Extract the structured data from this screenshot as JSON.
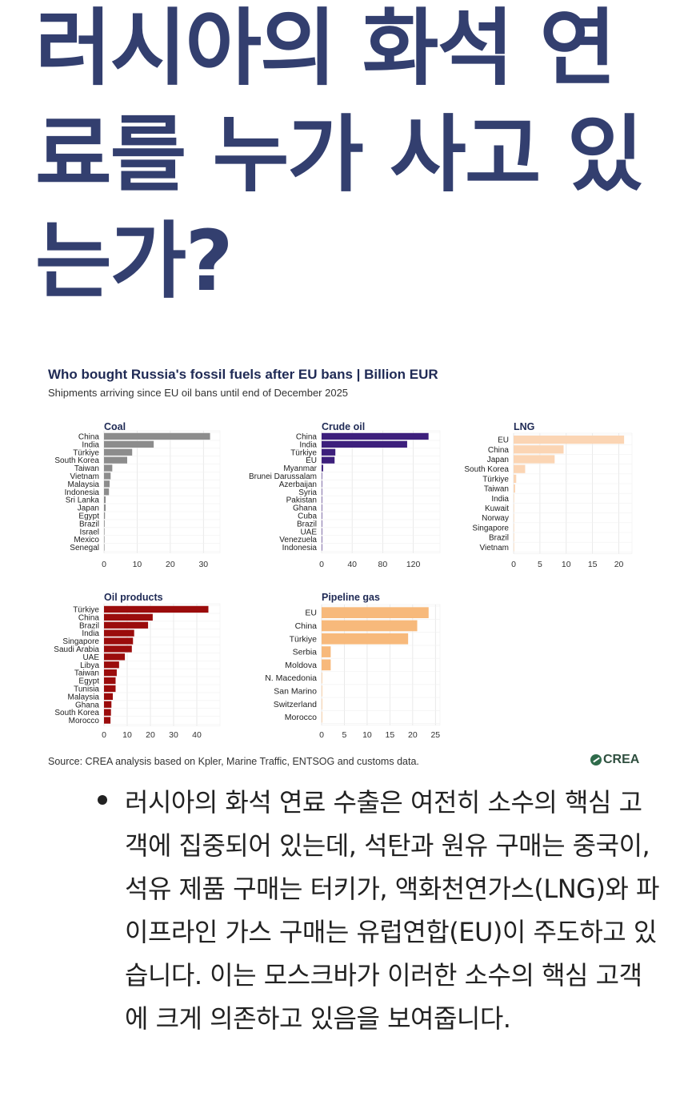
{
  "headline": "러시아의 화석 연료를 누가 사고 있는가?",
  "figure": {
    "title": "Who bought Russia's fossil fuels after EU bans | Billion EUR",
    "subtitle": "Shipments arriving since EU oil bans until end of December 2025",
    "source": "Source: CREA analysis based on Kpler, Marine Traffic, ENTSOG and customs data.",
    "logo_text": "CREA"
  },
  "chart_data": [
    {
      "type": "bar",
      "title": "Coal",
      "color": "#8c8c8c",
      "categories": [
        "China",
        "India",
        "Türkiye",
        "South Korea",
        "Taiwan",
        "Vietnam",
        "Malaysia",
        "Indonesia",
        "Sri Lanka",
        "Japan",
        "Egypt",
        "Brazil",
        "Israel",
        "Mexico",
        "Senegal"
      ],
      "values": [
        32,
        15,
        8.5,
        7,
        2.5,
        2,
        1.7,
        1.5,
        0.5,
        0.5,
        0.3,
        0.2,
        0.1,
        0.1,
        0.1
      ],
      "xlim": [
        0,
        35
      ],
      "ticks": [
        0,
        10,
        20,
        30
      ]
    },
    {
      "type": "bar",
      "title": "Crude oil",
      "color": "#3d1f7c",
      "categories": [
        "China",
        "India",
        "Türkiye",
        "EU",
        "Myanmar",
        "Brunei Darussalam",
        "Azerbaijan",
        "Syria",
        "Pakistan",
        "Ghana",
        "Cuba",
        "Brazil",
        "UAE",
        "Venezuela",
        "Indonesia"
      ],
      "values": [
        140,
        112,
        18,
        17,
        2,
        0.5,
        0.4,
        0.4,
        0.3,
        0.3,
        0.2,
        0.2,
        0.2,
        0.1,
        0.1
      ],
      "xlim": [
        0,
        155
      ],
      "ticks": [
        0,
        40,
        80,
        120
      ]
    },
    {
      "type": "bar",
      "title": "LNG",
      "color": "#fbd5b4",
      "categories": [
        "EU",
        "China",
        "Japan",
        "South Korea",
        "Türkiye",
        "Taiwan",
        "India",
        "Kuwait",
        "Norway",
        "Singapore",
        "Brazil",
        "Vietnam"
      ],
      "values": [
        21,
        9.5,
        7.8,
        2.2,
        0.5,
        0.3,
        0.1,
        0.1,
        0.1,
        0.1,
        0.1,
        0.1
      ],
      "xlim": [
        0,
        22.5
      ],
      "ticks": [
        0,
        5,
        10,
        15,
        20
      ]
    },
    {
      "type": "bar",
      "title": "Oil products",
      "color": "#9b0c0c",
      "categories": [
        "Türkiye",
        "China",
        "Brazil",
        "India",
        "Singapore",
        "Saudi Arabia",
        "UAE",
        "Libya",
        "Taiwan",
        "Egypt",
        "Tunisia",
        "Malaysia",
        "Ghana",
        "South Korea",
        "Morocco"
      ],
      "values": [
        45,
        21,
        19,
        13,
        12.5,
        12,
        9,
        6.5,
        5.5,
        5,
        5,
        3.8,
        3.2,
        3,
        2.8
      ],
      "xlim": [
        0,
        50
      ],
      "ticks": [
        0,
        10,
        20,
        30,
        40
      ]
    },
    {
      "type": "bar",
      "title": "Pipeline gas",
      "color": "#f7b97b",
      "categories": [
        "EU",
        "China",
        "Türkiye",
        "Serbia",
        "Moldova",
        "N. Macedonia",
        "San Marino",
        "Switzerland",
        "Morocco"
      ],
      "values": [
        23.5,
        21,
        19,
        2,
        2,
        0.1,
        0.05,
        0.05,
        0.05
      ],
      "xlim": [
        0,
        26
      ],
      "ticks": [
        0,
        5,
        10,
        15,
        20,
        25
      ]
    }
  ],
  "bullets": [
    "러시아의 화석 연료 수출은 여전히 소수의 핵심 고객에 집중되어 있는데, 석탄과 원유 구매는 중국이, 석유 제품 구매는 터키가, 액화천연가스(LNG)와 파이프라인 가스 구매는 유럽연합(EU)이 주도하고 있습니다. 이는 모스크바가 이러한 소수의 핵심 고객에 크게 의존하고 있음을 보여줍니다."
  ]
}
